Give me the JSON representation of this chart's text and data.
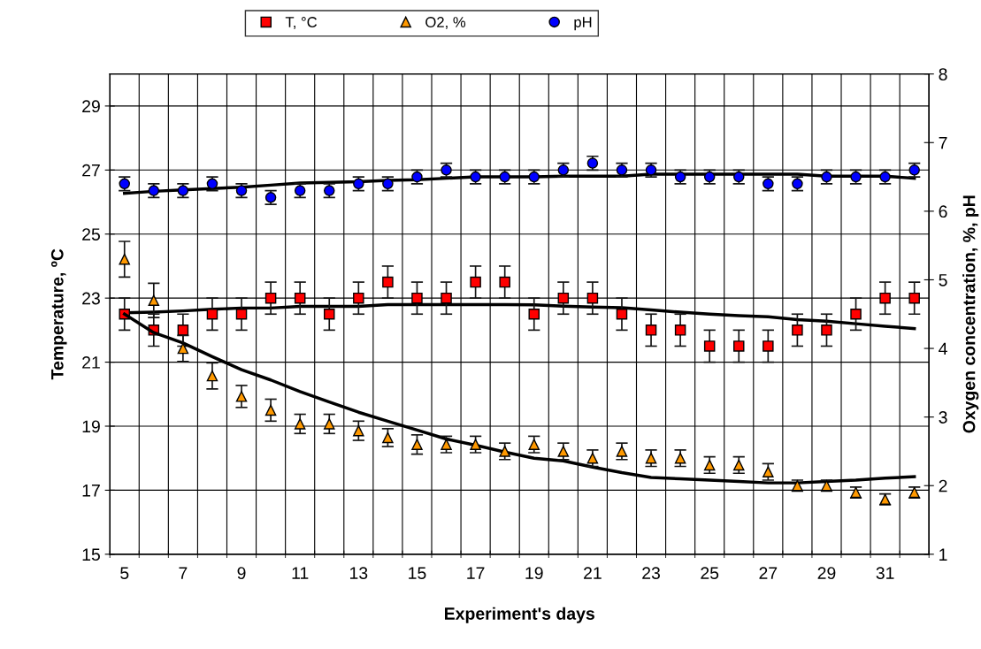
{
  "chart_data": {
    "type": "scatter",
    "xlabel": "Experiment's days",
    "ylabel": "Temperature, ºC",
    "y2label": "Oxygen concentration, %, pH",
    "categories": [
      "5",
      null,
      "7",
      null,
      "9",
      null,
      "11",
      null,
      "13",
      null,
      "15",
      null,
      "17",
      null,
      "19",
      null,
      "21",
      null,
      "23",
      null,
      "25",
      null,
      "27",
      null,
      "29",
      null,
      "31",
      null
    ],
    "ylim": [
      15,
      30
    ],
    "yticks": [
      15,
      17,
      19,
      21,
      23,
      25,
      27,
      29
    ],
    "y2lim": [
      1,
      8
    ],
    "y2ticks": [
      1,
      2,
      3,
      4,
      5,
      6,
      7,
      8
    ],
    "grid": true,
    "legend": "top",
    "series": [
      {
        "name": "T, °C",
        "marker": "square",
        "color": "#ff0000",
        "values": [
          22.5,
          22,
          22,
          22.5,
          22.5,
          23,
          23,
          22.5,
          23,
          23.5,
          23,
          23,
          23.5,
          23.5,
          22.5,
          23,
          23,
          22.5,
          22,
          22,
          21.5,
          21.5,
          21.5,
          22,
          22,
          22.5,
          23,
          23
        ],
        "errors": [
          0.5,
          0.5,
          0.5,
          0.5,
          0.5,
          0.5,
          0.5,
          0.5,
          0.5,
          0.5,
          0.5,
          0.5,
          0.5,
          0.5,
          0.5,
          0.5,
          0.5,
          0.5,
          0.5,
          0.5,
          0.5,
          0.5,
          0.5,
          0.5,
          0.5,
          0.5,
          0.5,
          0.5
        ]
      },
      {
        "name": "O2, %",
        "marker": "triangle",
        "color": "#ff9900",
        "axis": "y2",
        "values": [
          5.3,
          4.7,
          4.0,
          3.6,
          3.3,
          3.1,
          2.9,
          2.9,
          2.8,
          2.7,
          2.6,
          2.6,
          2.6,
          2.5,
          2.6,
          2.5,
          2.4,
          2.5,
          2.4,
          2.4,
          2.3,
          2.3,
          2.2,
          2.0,
          2.0,
          1.9,
          1.8,
          1.9
        ],
        "errors": [
          0.26,
          0.25,
          0.19,
          0.19,
          0.16,
          0.16,
          0.14,
          0.14,
          0.14,
          0.13,
          0.14,
          0.12,
          0.12,
          0.12,
          0.12,
          0.12,
          0.12,
          0.12,
          0.12,
          0.12,
          0.12,
          0.12,
          0.12,
          0.08,
          0.08,
          0.08,
          0.08,
          0.08
        ]
      },
      {
        "name": "pH",
        "marker": "circle",
        "color": "#0000ff",
        "axis": "y2",
        "values": [
          6.4,
          6.3,
          6.3,
          6.4,
          6.3,
          6.2,
          6.3,
          6.3,
          6.4,
          6.4,
          6.5,
          6.6,
          6.5,
          6.5,
          6.5,
          6.6,
          6.7,
          6.6,
          6.6,
          6.5,
          6.5,
          6.5,
          6.4,
          6.4,
          6.5,
          6.5,
          6.5,
          6.6
        ],
        "errors": [
          0.1,
          0.1,
          0.1,
          0.1,
          0.1,
          0.1,
          0.1,
          0.1,
          0.1,
          0.1,
          0.1,
          0.1,
          0.1,
          0.1,
          0.1,
          0.1,
          0.1,
          0.1,
          0.1,
          0.1,
          0.1,
          0.1,
          0.1,
          0.1,
          0.1,
          0.1,
          0.1,
          0.1
        ]
      },
      {
        "type": "line",
        "marker": "none",
        "color": "#000000",
        "values": [
          22.54,
          22.56,
          22.6,
          22.65,
          22.69,
          22.69,
          22.74,
          22.74,
          22.74,
          22.8,
          22.8,
          22.8,
          22.8,
          22.8,
          22.79,
          22.75,
          22.72,
          22.7,
          22.63,
          22.56,
          22.5,
          22.45,
          22.42,
          22.33,
          22.28,
          22.2,
          22.12,
          22.05
        ]
      },
      {
        "type": "line",
        "marker": "none",
        "color": "#000000",
        "axis": "y2",
        "values": [
          4.5,
          4.23,
          4.08,
          3.88,
          3.69,
          3.54,
          3.37,
          3.22,
          3.07,
          2.94,
          2.81,
          2.68,
          2.59,
          2.49,
          2.4,
          2.36,
          2.27,
          2.19,
          2.12,
          2.1,
          2.08,
          2.06,
          2.04,
          2.04,
          2.06,
          2.08,
          2.11,
          2.13
        ]
      },
      {
        "type": "line",
        "marker": "none",
        "color": "#000000",
        "axis": "y2",
        "values": [
          6.26,
          6.29,
          6.31,
          6.33,
          6.35,
          6.38,
          6.41,
          6.42,
          6.43,
          6.45,
          6.46,
          6.48,
          6.5,
          6.5,
          6.5,
          6.51,
          6.51,
          6.51,
          6.54,
          6.54,
          6.54,
          6.54,
          6.54,
          6.54,
          6.51,
          6.51,
          6.51,
          6.48
        ]
      }
    ]
  }
}
